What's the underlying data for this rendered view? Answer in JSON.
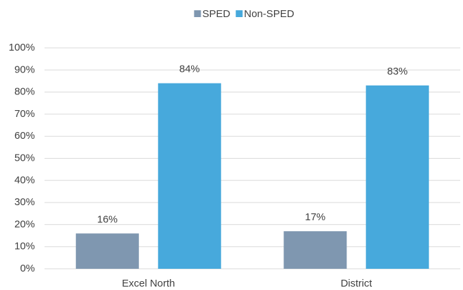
{
  "chart_data": {
    "type": "bar",
    "categories": [
      "Excel North",
      "District"
    ],
    "series": [
      {
        "name": "SPED",
        "color": "#7f97b0",
        "values": [
          16,
          17
        ],
        "value_labels": [
          "16%",
          "17%"
        ]
      },
      {
        "name": "Non-SPED",
        "color": "#47a9dc",
        "values": [
          84,
          83
        ],
        "value_labels": [
          "84%",
          "83%"
        ]
      }
    ],
    "ylim": [
      0,
      100
    ],
    "yticks": [
      {
        "value": 0,
        "label": "0%"
      },
      {
        "value": 10,
        "label": "10%"
      },
      {
        "value": 20,
        "label": "20%"
      },
      {
        "value": 30,
        "label": "30%"
      },
      {
        "value": 40,
        "label": "40%"
      },
      {
        "value": 50,
        "label": "50%"
      },
      {
        "value": 60,
        "label": "60%"
      },
      {
        "value": 70,
        "label": "70%"
      },
      {
        "value": 80,
        "label": "80%"
      },
      {
        "value": 90,
        "label": "90%"
      },
      {
        "value": 100,
        "label": "100%"
      }
    ],
    "grid": true,
    "legend": "top"
  }
}
